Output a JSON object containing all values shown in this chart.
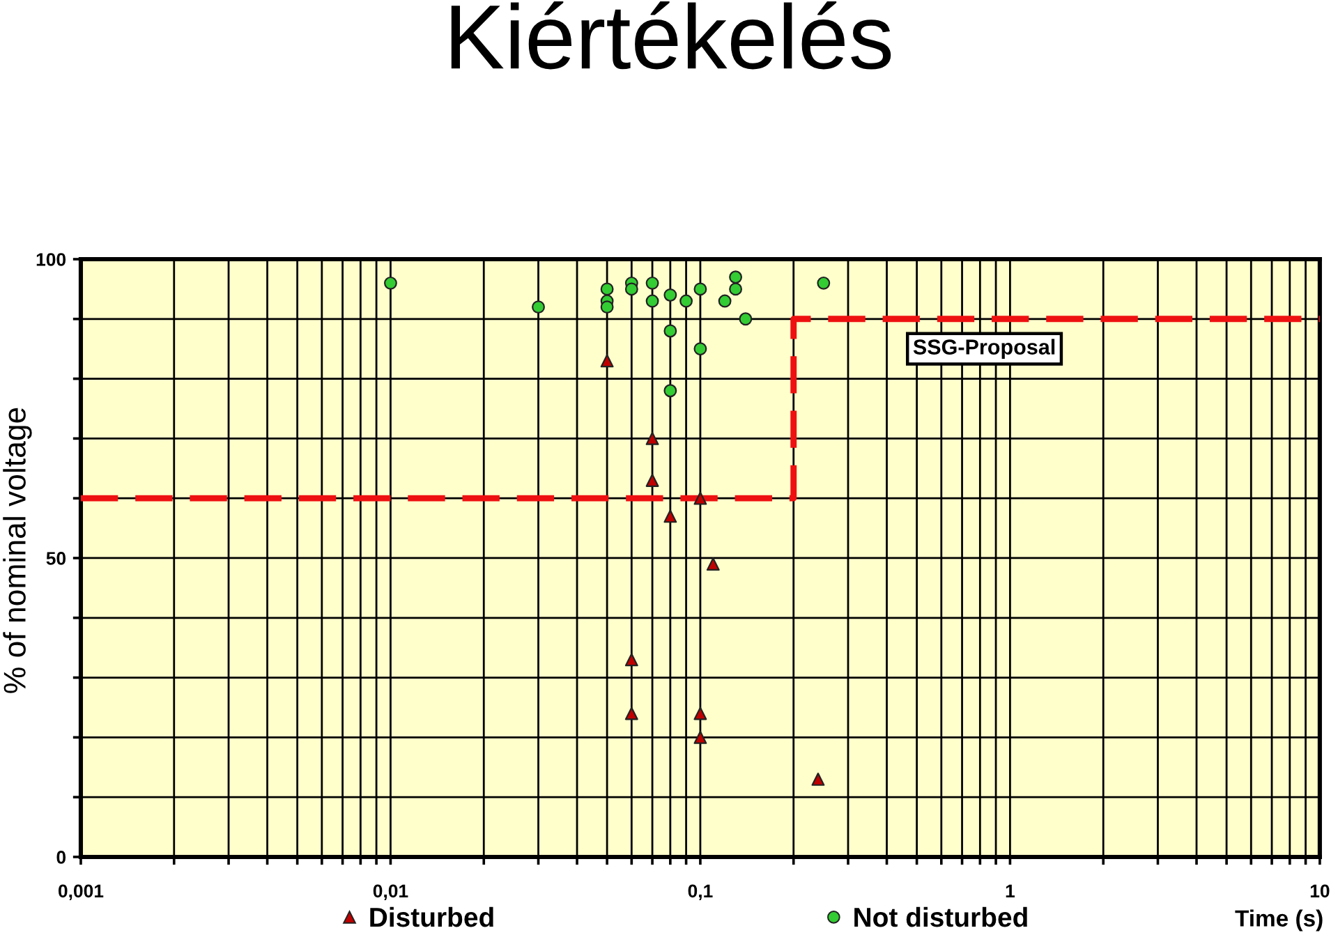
{
  "chart_data": {
    "type": "scatter",
    "title": "Kiértékelés",
    "xlabel": "Time (s)",
    "ylabel": "% of nominal voltage",
    "log": "x",
    "grid": true,
    "legend": "bottom",
    "xlim": [
      0.001,
      10
    ],
    "ylim": [
      0,
      100
    ],
    "xticks": [
      {
        "value": 0.001,
        "label": "0,001"
      },
      {
        "value": 0.002,
        "label": null
      },
      {
        "value": 0.003,
        "label": null
      },
      {
        "value": 0.004,
        "label": null
      },
      {
        "value": 0.005,
        "label": null
      },
      {
        "value": 0.006,
        "label": null
      },
      {
        "value": 0.007,
        "label": null
      },
      {
        "value": 0.008,
        "label": null
      },
      {
        "value": 0.009,
        "label": null
      },
      {
        "value": 0.01,
        "label": "0,01"
      },
      {
        "value": 0.02,
        "label": null
      },
      {
        "value": 0.03,
        "label": null
      },
      {
        "value": 0.04,
        "label": null
      },
      {
        "value": 0.05,
        "label": null
      },
      {
        "value": 0.06,
        "label": null
      },
      {
        "value": 0.07,
        "label": null
      },
      {
        "value": 0.08,
        "label": null
      },
      {
        "value": 0.09,
        "label": null
      },
      {
        "value": 0.1,
        "label": "0,1"
      },
      {
        "value": 0.2,
        "label": null
      },
      {
        "value": 0.3,
        "label": null
      },
      {
        "value": 0.4,
        "label": null
      },
      {
        "value": 0.5,
        "label": null
      },
      {
        "value": 0.6,
        "label": null
      },
      {
        "value": 0.7,
        "label": null
      },
      {
        "value": 0.8,
        "label": null
      },
      {
        "value": 0.9,
        "label": null
      },
      1,
      {
        "value": 2,
        "label": null
      },
      {
        "value": 3,
        "label": null
      },
      {
        "value": 4,
        "label": null
      },
      {
        "value": 5,
        "label": null
      },
      {
        "value": 6,
        "label": null
      },
      {
        "value": 7,
        "label": null
      },
      {
        "value": 8,
        "label": null
      },
      {
        "value": 9,
        "label": null
      },
      10
    ],
    "yticks": [
      0,
      {
        "value": 10,
        "label": null
      },
      {
        "value": 20,
        "label": null
      },
      {
        "value": 30,
        "label": null
      },
      {
        "value": 40,
        "label": null
      },
      50,
      {
        "value": 60,
        "label": null
      },
      {
        "value": 70,
        "label": null
      },
      {
        "value": 80,
        "label": null
      },
      {
        "value": 90,
        "label": null
      },
      100
    ],
    "series": [
      {
        "name": "Disturbed",
        "color": "#c00000",
        "marker": "triangle",
        "x": [
          0.05,
          0.06,
          0.06,
          0.07,
          0.07,
          0.08,
          0.1,
          0.1,
          0.1,
          0.11,
          0.24
        ],
        "values": [
          83,
          33,
          24,
          70,
          63,
          57,
          60,
          24,
          20,
          49,
          13
        ]
      },
      {
        "name": "Not disturbed",
        "color": "#33cc33",
        "marker": "circle",
        "x": [
          0.01,
          0.03,
          0.05,
          0.05,
          0.05,
          0.06,
          0.06,
          0.07,
          0.07,
          0.08,
          0.08,
          0.08,
          0.09,
          0.1,
          0.1,
          0.12,
          0.13,
          0.13,
          0.14,
          0.25
        ],
        "values": [
          96,
          92,
          95,
          93,
          92,
          96,
          95,
          96,
          93,
          94,
          88,
          78,
          93,
          95,
          85,
          93,
          97,
          95,
          90,
          96
        ]
      },
      {
        "name": "SSG-Proposal",
        "type": "line",
        "color": "#ee1111",
        "line_style": "dashed",
        "marker": "none",
        "x": [
          0.001,
          0.2,
          0.2,
          10
        ],
        "values": [
          60,
          60,
          90,
          90
        ]
      }
    ]
  }
}
